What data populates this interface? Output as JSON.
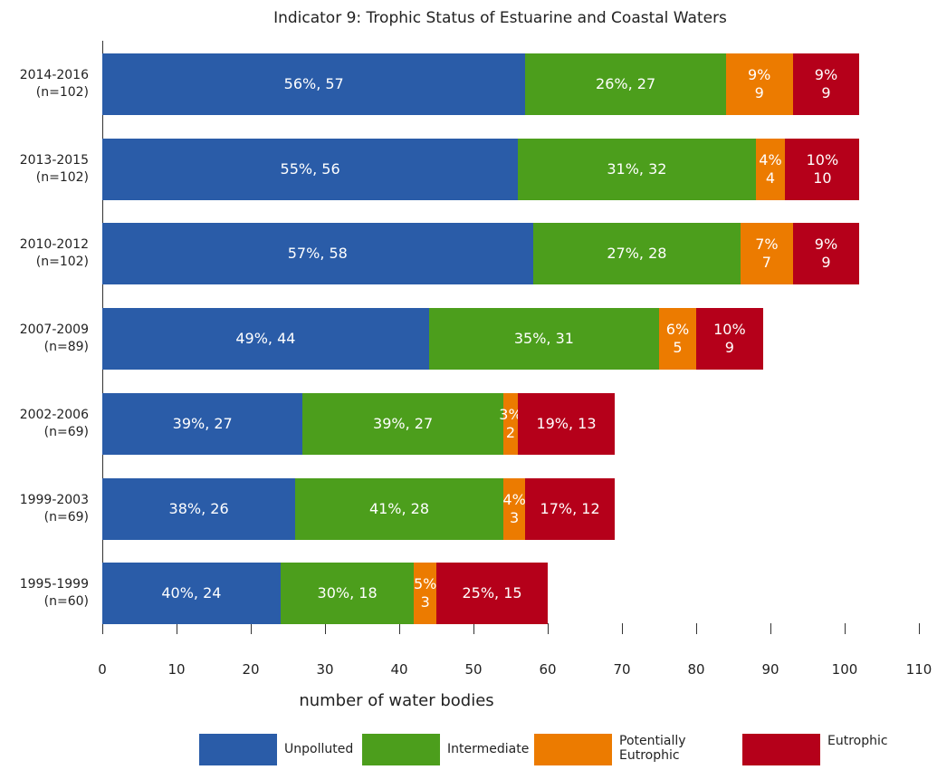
{
  "chart_data": {
    "type": "stacked_bar_horizontal",
    "title": "Indicator 9: Trophic Status of Estuarine and Coastal Waters",
    "xlabel": "number of water bodies",
    "categories": [
      "2014-2016\n(n=102)",
      "2013-2015\n(n=102)",
      "2010-2012\n(n=102)",
      "2007-2009\n(n=89)",
      "2002-2006\n(n=69)",
      "1999-2003\n(n=69)",
      "1995-1999\n(n=60)"
    ],
    "series": [
      {
        "name": "Unpolluted",
        "color": "#2a5ca8",
        "values": [
          57,
          56,
          58,
          44,
          27,
          26,
          24
        ],
        "value_labels": [
          "56%, 57",
          "55%, 56",
          "57%, 58",
          "49%, 44",
          "39%, 27",
          "38%, 26",
          "40%, 24"
        ]
      },
      {
        "name": "Intermediate",
        "color": "#4c9e1c",
        "values": [
          27,
          32,
          28,
          31,
          27,
          28,
          18
        ],
        "value_labels": [
          "26%, 27",
          "31%, 32",
          "27%, 28",
          "35%, 31",
          "39%, 27",
          "41%, 28",
          "30%, 18"
        ]
      },
      {
        "name": "Potentially Eutrophic",
        "color": "#ec7b00",
        "values": [
          9,
          4,
          7,
          5,
          2,
          3,
          3
        ],
        "value_labels": [
          "9%\n9",
          "4%\n4",
          "7%\n7",
          "6%\n5",
          "3%\n2",
          "4%\n3",
          "5%\n3"
        ]
      },
      {
        "name": "Eutrophic",
        "color": "#b5001a",
        "values": [
          9,
          10,
          9,
          9,
          13,
          12,
          15
        ],
        "value_labels": [
          "9%\n9",
          "10%\n10",
          "9%\n9",
          "10%\n9",
          "19%, 13",
          "17%, 12",
          "25%, 15"
        ]
      }
    ],
    "xlim": [
      0,
      110
    ],
    "xticks": [
      0,
      10,
      20,
      30,
      40,
      50,
      60,
      70,
      80,
      90,
      100,
      110
    ]
  }
}
